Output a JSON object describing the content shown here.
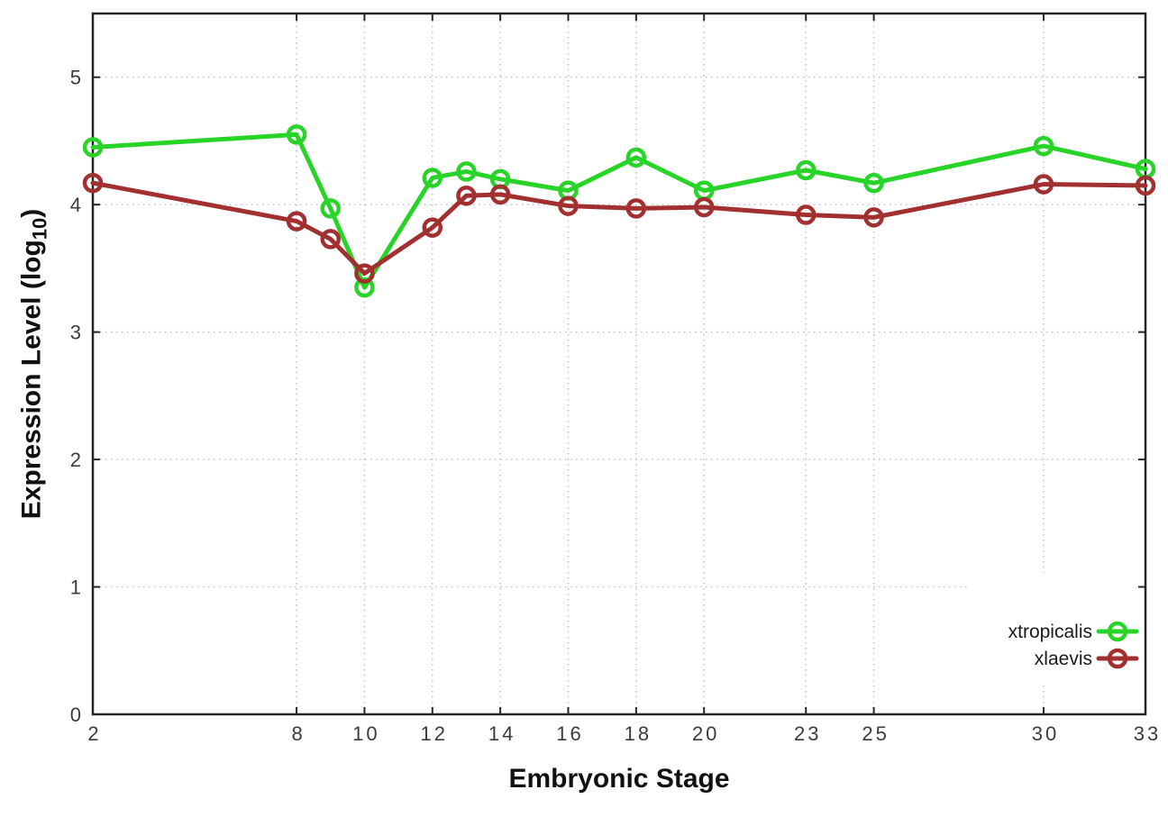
{
  "chart_data": {
    "type": "line",
    "title": "",
    "xlabel": "Embryonic Stage",
    "ylabel_prefix": "Expression Level (log",
    "ylabel_sub": "10",
    "ylabel_suffix": ")",
    "x": [
      2,
      8,
      9,
      10,
      12,
      13,
      14,
      16,
      18,
      20,
      23,
      25,
      30,
      33
    ],
    "series": [
      {
        "name": "xtropicalis",
        "color": "#28d428",
        "values": [
          4.45,
          4.55,
          3.97,
          3.35,
          4.21,
          4.26,
          4.2,
          4.11,
          4.37,
          4.11,
          4.27,
          4.17,
          4.46,
          4.28
        ]
      },
      {
        "name": "xlaevis",
        "color": "#a23030",
        "values": [
          4.17,
          3.87,
          3.73,
          3.46,
          3.82,
          4.07,
          4.08,
          3.99,
          3.97,
          3.98,
          3.92,
          3.9,
          4.16,
          4.15
        ]
      }
    ],
    "xticks": [
      2,
      8,
      10,
      12,
      14,
      16,
      18,
      20,
      23,
      25,
      30,
      33
    ],
    "yticks": [
      0,
      1,
      2,
      3,
      4,
      5
    ],
    "xlim": [
      2,
      33
    ],
    "ylim": [
      0,
      5.5
    ],
    "grid": true,
    "legend_position": "inside-right-lower",
    "marker": "open-circle",
    "axis_color": "#262626",
    "grid_color": "#bcbcbc",
    "tick_label_color": "#3c3c3c",
    "legend_text_color": "#1a1a1a"
  }
}
